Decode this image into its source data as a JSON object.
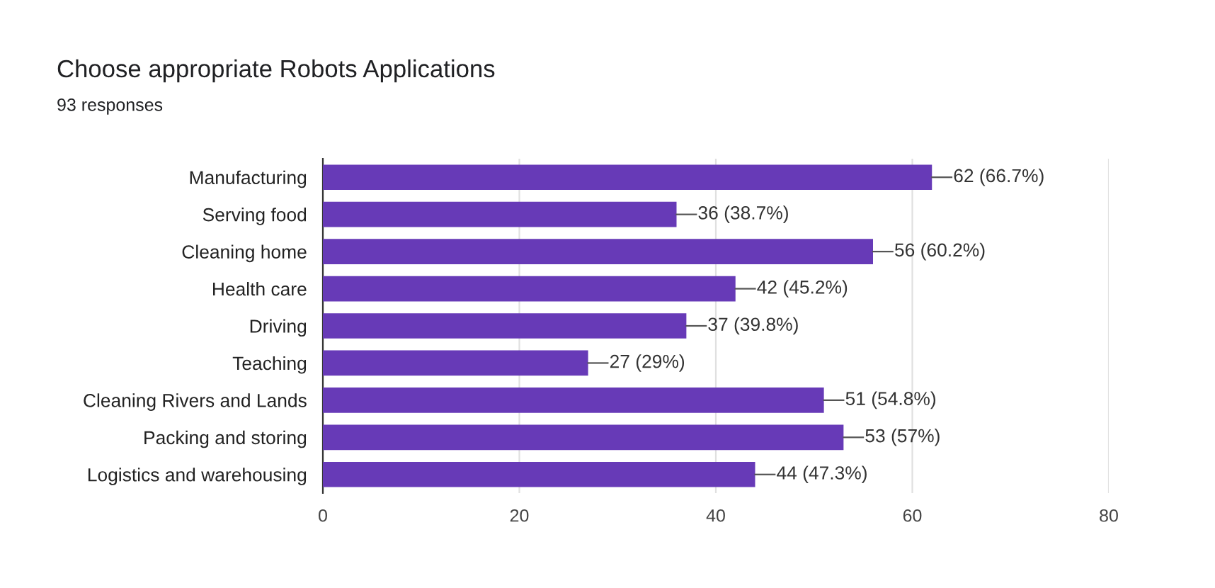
{
  "chart_data": {
    "type": "bar",
    "orientation": "horizontal",
    "title": "Choose appropriate Robots Applications",
    "subtitle": "93 responses",
    "categories": [
      "Manufacturing",
      "Serving food",
      "Cleaning home",
      "Health care",
      "Driving",
      "Teaching",
      "Cleaning Rivers and Lands",
      "Packing and storing",
      "Logistics and warehousing"
    ],
    "values": [
      62,
      36,
      56,
      42,
      37,
      27,
      51,
      53,
      44
    ],
    "value_labels": [
      "62 (66.7%)",
      "36 (38.7%)",
      "56 (60.2%)",
      "42 (45.2%)",
      "37 (39.8%)",
      "27 (29%)",
      "51 (54.8%)",
      "53 (57%)",
      "44 (47.3%)"
    ],
    "color": "#673ab7",
    "xlim": [
      0,
      80
    ],
    "xticks": [
      0,
      20,
      40,
      60,
      80
    ],
    "grid": "x"
  }
}
